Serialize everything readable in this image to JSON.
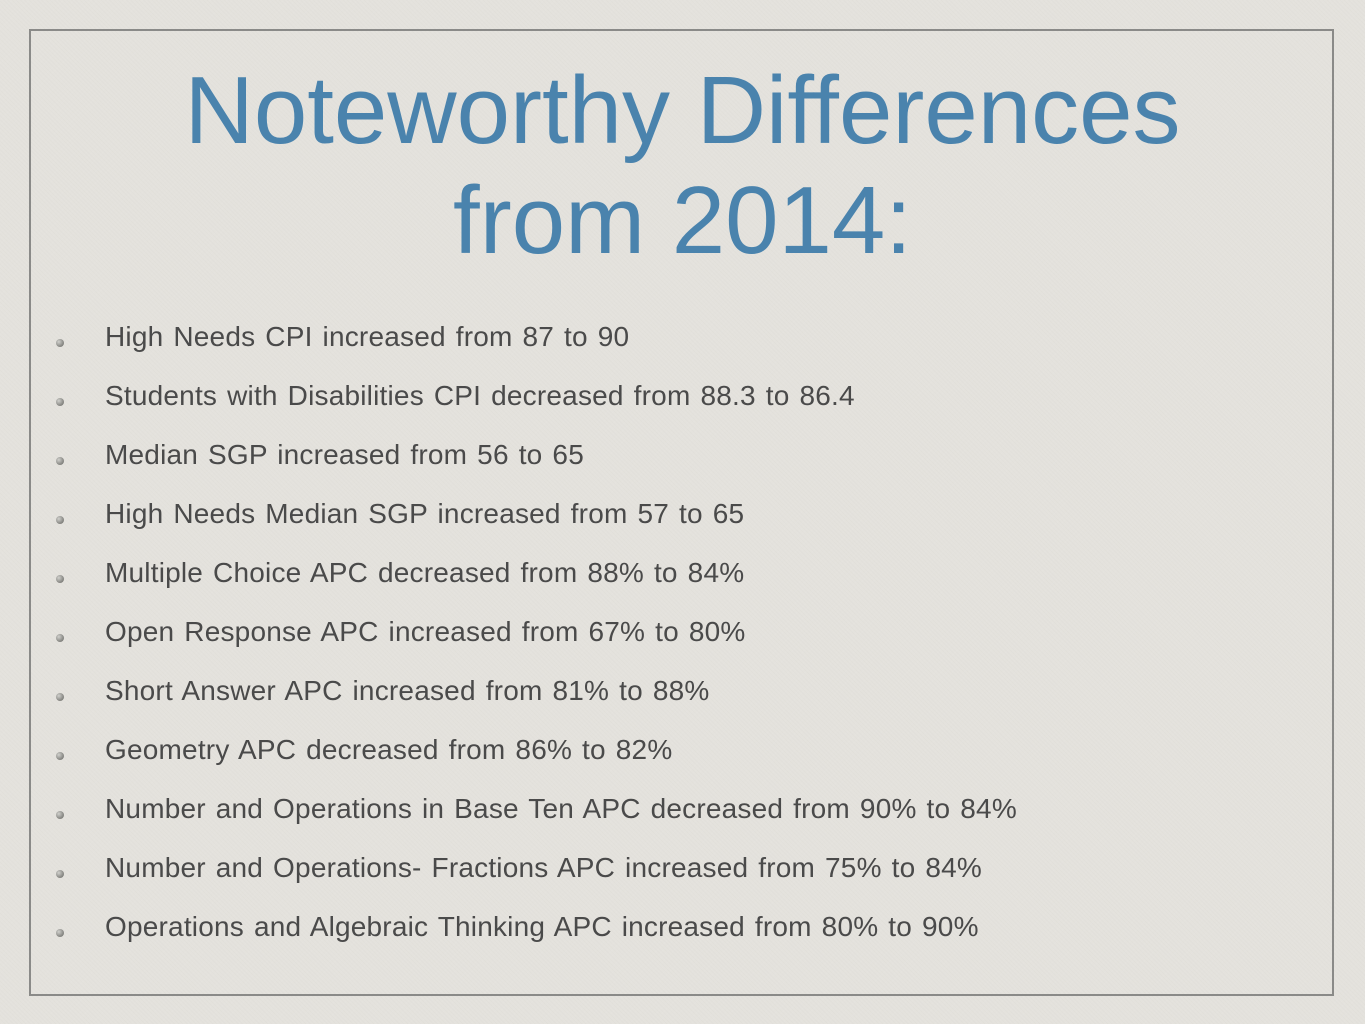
{
  "slide": {
    "title_lines": [
      "Noteworthy Differences",
      "from 2014:"
    ],
    "bullets": [
      "High Needs CPI increased from 87 to 90",
      "Students with Disabilities CPI decreased from 88.3 to 86.4",
      "Median SGP increased from 56 to 65",
      "High Needs Median SGP increased from 57 to 65",
      "Multiple Choice APC decreased from 88% to 84%",
      "Open Response APC increased from 67% to 80%",
      "Short Answer APC increased from 81% to 88%",
      "Geometry APC decreased from 86% to 82%",
      "Number and Operations in Base Ten APC decreased from 90% to 84%",
      "Number and Operations- Fractions APC increased from 75% to 84%",
      "Operations and Algebraic Thinking APC increased from 80% to 90%"
    ]
  },
  "colors": {
    "background": "#e4e2dd",
    "title": "#4a83ad",
    "body_text": "#4a4a4a",
    "frame_border": "#8a8a88"
  },
  "icons": {
    "bullet": "bullet-dot-icon"
  }
}
